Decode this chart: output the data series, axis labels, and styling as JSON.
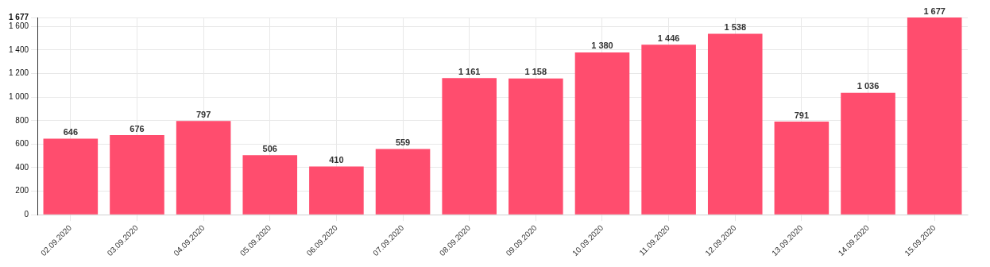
{
  "chart_data": {
    "type": "bar",
    "categories": [
      "02.09.2020",
      "03.09.2020",
      "04.09.2020",
      "05.09.2020",
      "06.09.2020",
      "07.09.2020",
      "08.09.2020",
      "09.09.2020",
      "10.09.2020",
      "11.09.2020",
      "12.09.2020",
      "13.09.2020",
      "14.09.2020",
      "15.09.2020"
    ],
    "values": [
      646,
      676,
      797,
      506,
      410,
      559,
      1161,
      1158,
      1380,
      1446,
      1538,
      791,
      1036,
      1677
    ],
    "value_labels": [
      "646",
      "676",
      "797",
      "506",
      "410",
      "559",
      "1 161",
      "1 158",
      "1 380",
      "1 446",
      "1 538",
      "791",
      "1 036",
      "1 677"
    ],
    "color": "#ff4d6e",
    "ylim": [
      0,
      1677
    ],
    "yticks": [
      0,
      200,
      400,
      600,
      800,
      {
        "value": 1000,
        "label": "1 000"
      },
      {
        "value": 1200,
        "label": "1 200"
      },
      {
        "value": 1400,
        "label": "1 400"
      },
      {
        "value": 1600,
        "label": "1 600"
      },
      {
        "value": 1677,
        "label": "1 677"
      }
    ],
    "grid": true,
    "legend": false
  }
}
